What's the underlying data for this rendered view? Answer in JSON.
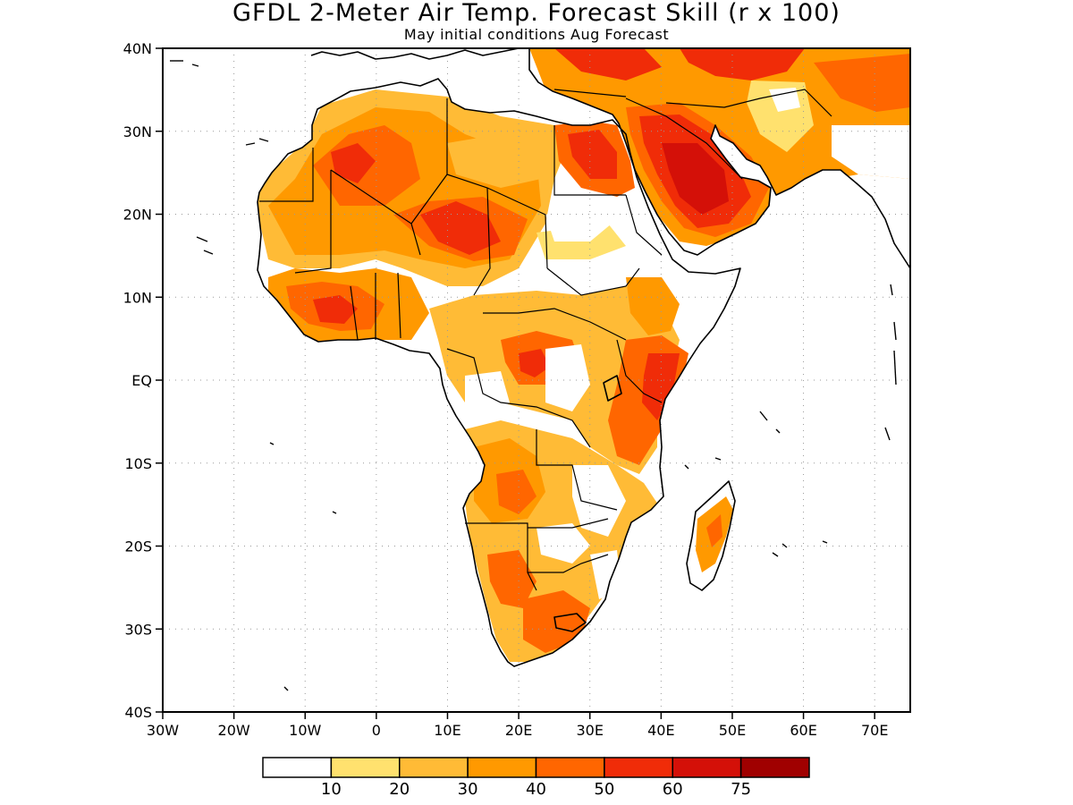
{
  "title": "GFDL 2-Meter Air Temp. Forecast Skill (r x 100)",
  "subtitle": "May initial conditions  Aug Forecast",
  "map": {
    "lon_range": [
      -30,
      75
    ],
    "lat_range": [
      -40,
      40
    ],
    "grid": true,
    "lat_tick_labels": [
      {
        "lat": 40,
        "label": "40N"
      },
      {
        "lat": 30,
        "label": "30N"
      },
      {
        "lat": 20,
        "label": "20N"
      },
      {
        "lat": 10,
        "label": "10N"
      },
      {
        "lat": 0,
        "label": "EQ"
      },
      {
        "lat": -10,
        "label": "10S"
      },
      {
        "lat": -20,
        "label": "20S"
      },
      {
        "lat": -30,
        "label": "30S"
      },
      {
        "lat": -40,
        "label": "40S"
      }
    ],
    "lon_tick_labels": [
      {
        "lon": -30,
        "label": "30W"
      },
      {
        "lon": -20,
        "label": "20W"
      },
      {
        "lon": -10,
        "label": "10W"
      },
      {
        "lon": 0,
        "label": "0"
      },
      {
        "lon": 10,
        "label": "10E"
      },
      {
        "lon": 20,
        "label": "20E"
      },
      {
        "lon": 30,
        "label": "30E"
      },
      {
        "lon": 40,
        "label": "40E"
      },
      {
        "lon": 50,
        "label": "50E"
      },
      {
        "lon": 60,
        "label": "60E"
      },
      {
        "lon": 70,
        "label": "70E"
      }
    ]
  },
  "legend": {
    "colors": [
      "#ffffff",
      "#ffe16e",
      "#ffbb36",
      "#ff9900",
      "#ff6600",
      "#f02c08",
      "#d41008",
      "#a00000"
    ],
    "labels": [
      "10",
      "20",
      "30",
      "40",
      "50",
      "60",
      "75"
    ]
  }
}
